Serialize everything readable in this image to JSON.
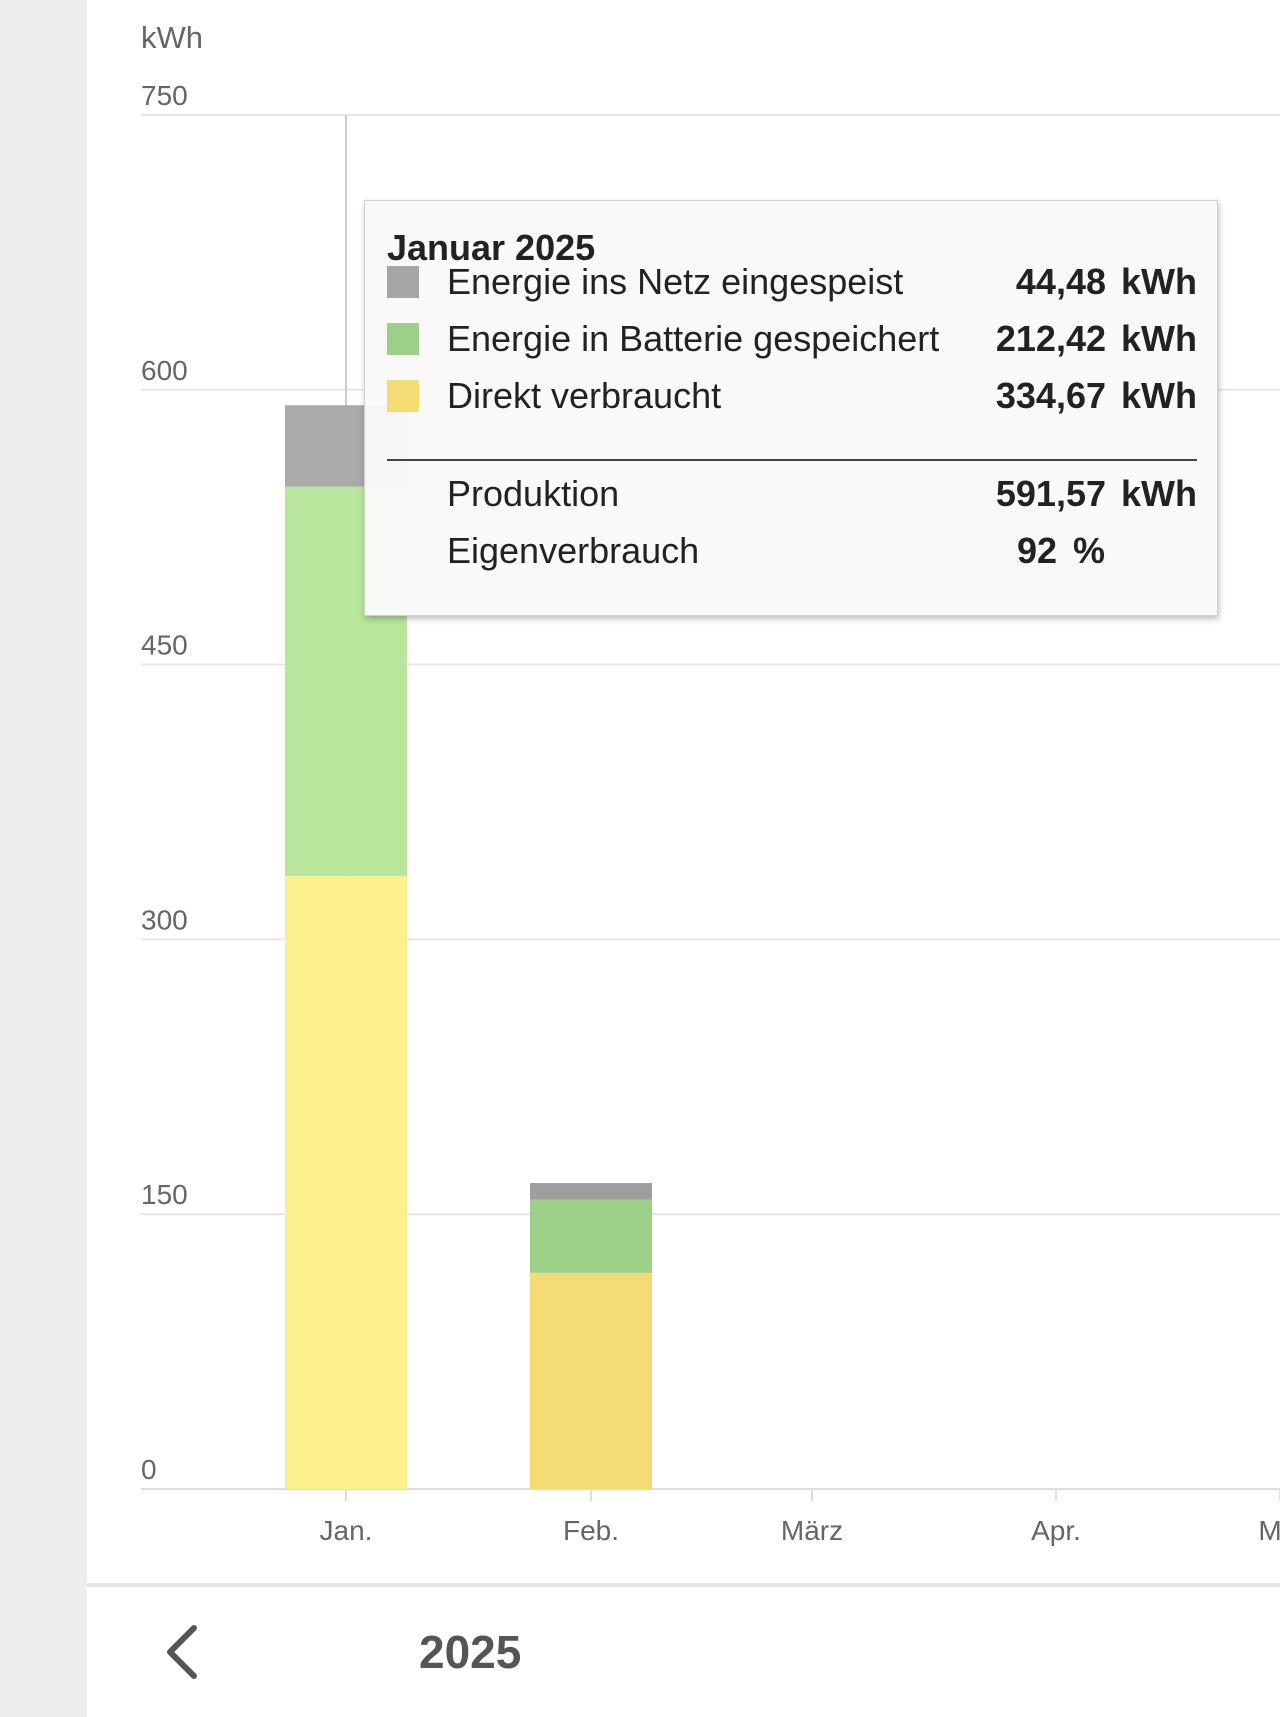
{
  "chart_data": {
    "type": "bar",
    "stacked": true,
    "unit_label": "kWh",
    "ylim": [
      0,
      750
    ],
    "yticks": [
      0,
      150,
      300,
      450,
      600,
      750
    ],
    "categories": [
      "Jan.",
      "Feb.",
      "März",
      "Apr.",
      "M"
    ],
    "series": [
      {
        "name": "Direkt verbraucht",
        "values": [
          334.67,
          118,
          null,
          null,
          null
        ],
        "colors": [
          "#fcf08c",
          "#f5db74"
        ]
      },
      {
        "name": "Energie in Batterie gespeichert",
        "values": [
          212.42,
          40,
          null,
          null,
          null
        ],
        "colors": [
          "#b8e69d",
          "#9ecf86"
        ]
      },
      {
        "name": "Energie ins Netz eingespeist",
        "values": [
          44.48,
          9,
          null,
          null,
          null
        ],
        "colors": [
          "#aaaaaa",
          "#9e9e9e"
        ]
      }
    ],
    "grid": true,
    "hover_category_index": 0
  },
  "tooltip": {
    "title": "Januar 2025",
    "rows": [
      {
        "label": "Energie ins Netz eingespeist",
        "value": "44,48",
        "unit": "kWh",
        "swatch": "#a6a6a6"
      },
      {
        "label": "Energie in Batterie gespeichert",
        "value": "212,42",
        "unit": "kWh",
        "swatch": "#9ecf86"
      },
      {
        "label": "Direkt verbraucht",
        "value": "334,67",
        "unit": "kWh",
        "swatch": "#f5db74"
      }
    ],
    "summary": [
      {
        "label": "Produktion",
        "value": "591,57",
        "unit": "kWh"
      },
      {
        "label": "Eigenverbrauch",
        "value": "92",
        "unit": "%"
      }
    ]
  },
  "footer": {
    "year": "2025",
    "back_icon": "chevron-left-icon"
  }
}
